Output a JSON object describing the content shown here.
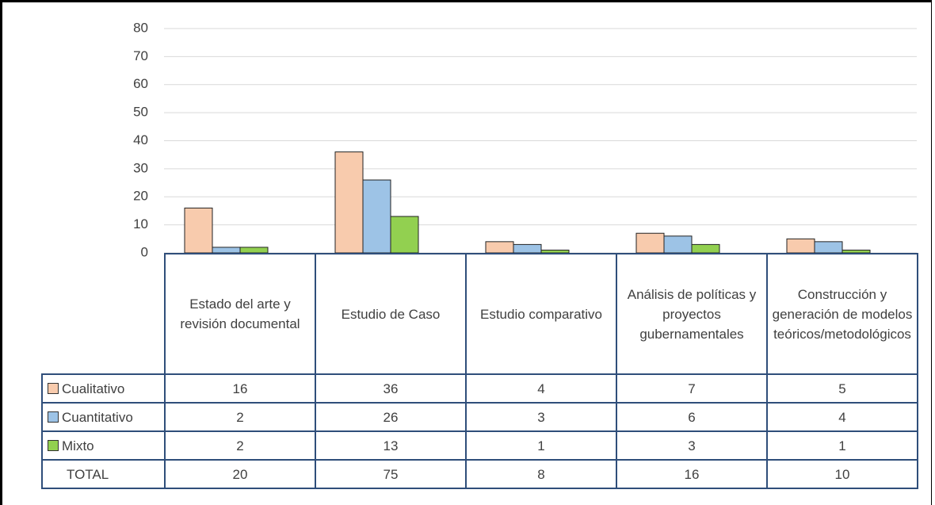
{
  "chart_data": {
    "type": "bar",
    "categories": [
      "Estado del arte y revisión documental",
      "Estudio de Caso",
      "Estudio comparativo",
      "Análisis de políticas y proyectos gubernamentales",
      "Construcción y generación de modelos teóricos/metodológicos"
    ],
    "series": [
      {
        "name": "Cualitativo",
        "color": "#f8cbad",
        "values": [
          16,
          36,
          4,
          7,
          5
        ]
      },
      {
        "name": "Cuantitativo",
        "color": "#9dc3e6",
        "values": [
          2,
          26,
          3,
          6,
          4
        ]
      },
      {
        "name": "Mixto",
        "color": "#92d050",
        "values": [
          2,
          13,
          1,
          3,
          1
        ]
      }
    ],
    "total": {
      "label": "TOTAL",
      "values": [
        20,
        75,
        8,
        16,
        10
      ]
    },
    "ylim": [
      0,
      80
    ],
    "yticks": [
      0,
      10,
      20,
      30,
      40,
      50,
      60,
      70,
      80
    ],
    "grid": true
  }
}
